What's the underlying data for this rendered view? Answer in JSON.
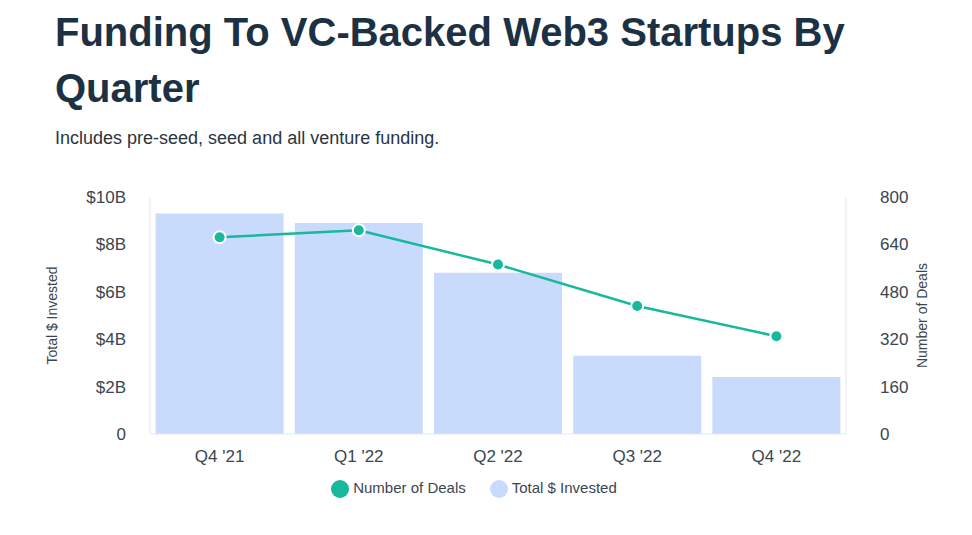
{
  "chart_data": {
    "type": "bar",
    "title": "Funding To VC-Backed Web3 Startups By Quarter",
    "subtitle": "Includes pre-seed, seed and all venture funding.",
    "categories": [
      "Q4 '21",
      "Q1 '22",
      "Q2 '22",
      "Q3 '22",
      "Q4 '22"
    ],
    "series": [
      {
        "name": "Total $ Invested",
        "type": "bar",
        "color": "#c9dbfc",
        "values": [
          9.3,
          8.9,
          6.8,
          3.3,
          2.4
        ]
      },
      {
        "name": "Number of Deals",
        "type": "line",
        "axis": "y2",
        "color": "#17b89b",
        "marker": "circle",
        "values": [
          664,
          688,
          572,
          432,
          330
        ]
      }
    ],
    "ylabel": "Total $ Invested",
    "y2label": "Number of Deals",
    "ylim": [
      0,
      10
    ],
    "yticks": [
      0,
      {
        "value": 2,
        "label": "$2B"
      },
      {
        "value": 4,
        "label": "$4B"
      },
      {
        "value": 6,
        "label": "$6B"
      },
      {
        "value": 8,
        "label": "$8B"
      },
      {
        "value": 10,
        "label": "$10B"
      }
    ],
    "y2lim": [
      0,
      800
    ],
    "y2ticks": [
      0,
      160,
      320,
      480,
      640,
      800
    ],
    "legend": "bottom",
    "grid": false
  }
}
